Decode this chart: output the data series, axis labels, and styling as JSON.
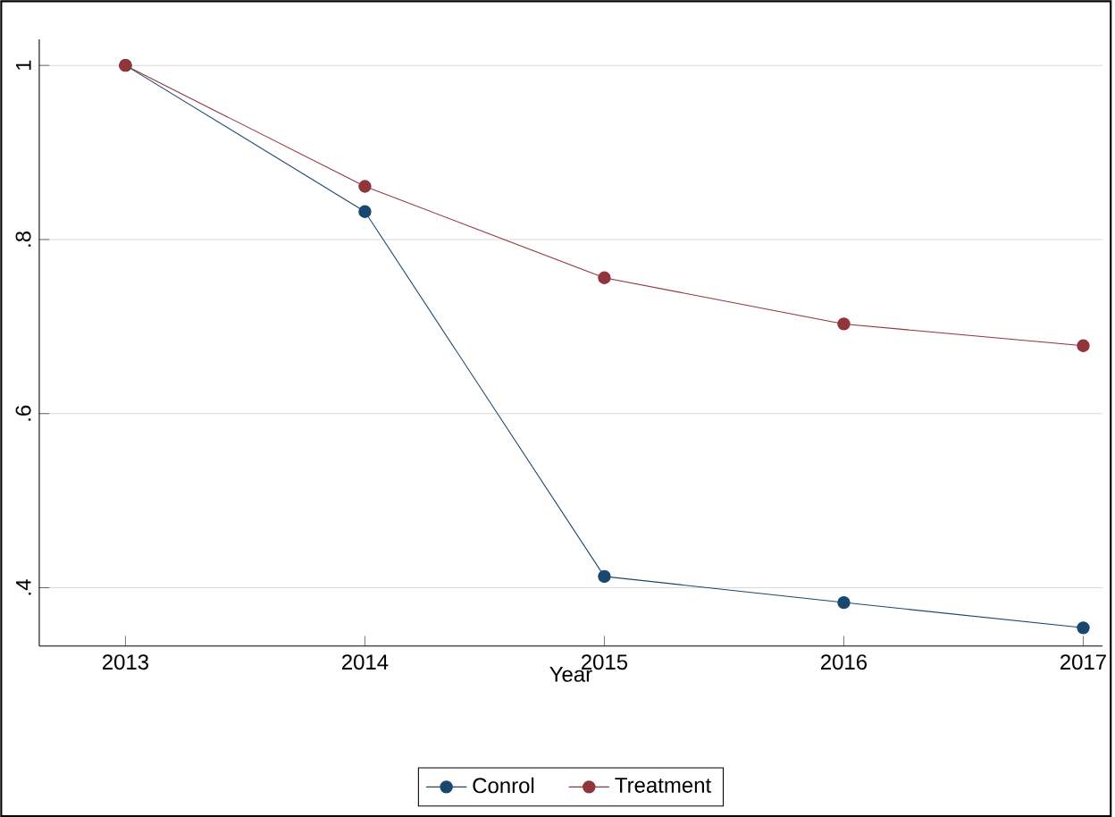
{
  "chart_data": {
    "type": "line",
    "xlabel": "Year",
    "x": [
      2013,
      2014,
      2015,
      2016,
      2017
    ],
    "series": [
      {
        "name": "Conrol",
        "color": "#1a476f",
        "values": [
          1.0,
          0.832,
          0.413,
          0.383,
          0.354
        ]
      },
      {
        "name": "Treatment",
        "color": "#90353b",
        "values": [
          1.0,
          0.861,
          0.756,
          0.703,
          0.678
        ]
      }
    ],
    "xlim": [
      2012.64,
      2017.08
    ],
    "ylim": [
      0.333,
      1.03
    ],
    "xticks": [
      2013,
      2014,
      2015,
      2016,
      2017
    ],
    "yticks": [
      {
        "value": 0.4,
        "label": ".4"
      },
      {
        "value": 0.6,
        "label": ".6"
      },
      {
        "value": 0.8,
        "label": ".8"
      },
      1
    ],
    "grid": "y",
    "legend": "bottom",
    "marker": "circle",
    "line_style": "solid"
  }
}
